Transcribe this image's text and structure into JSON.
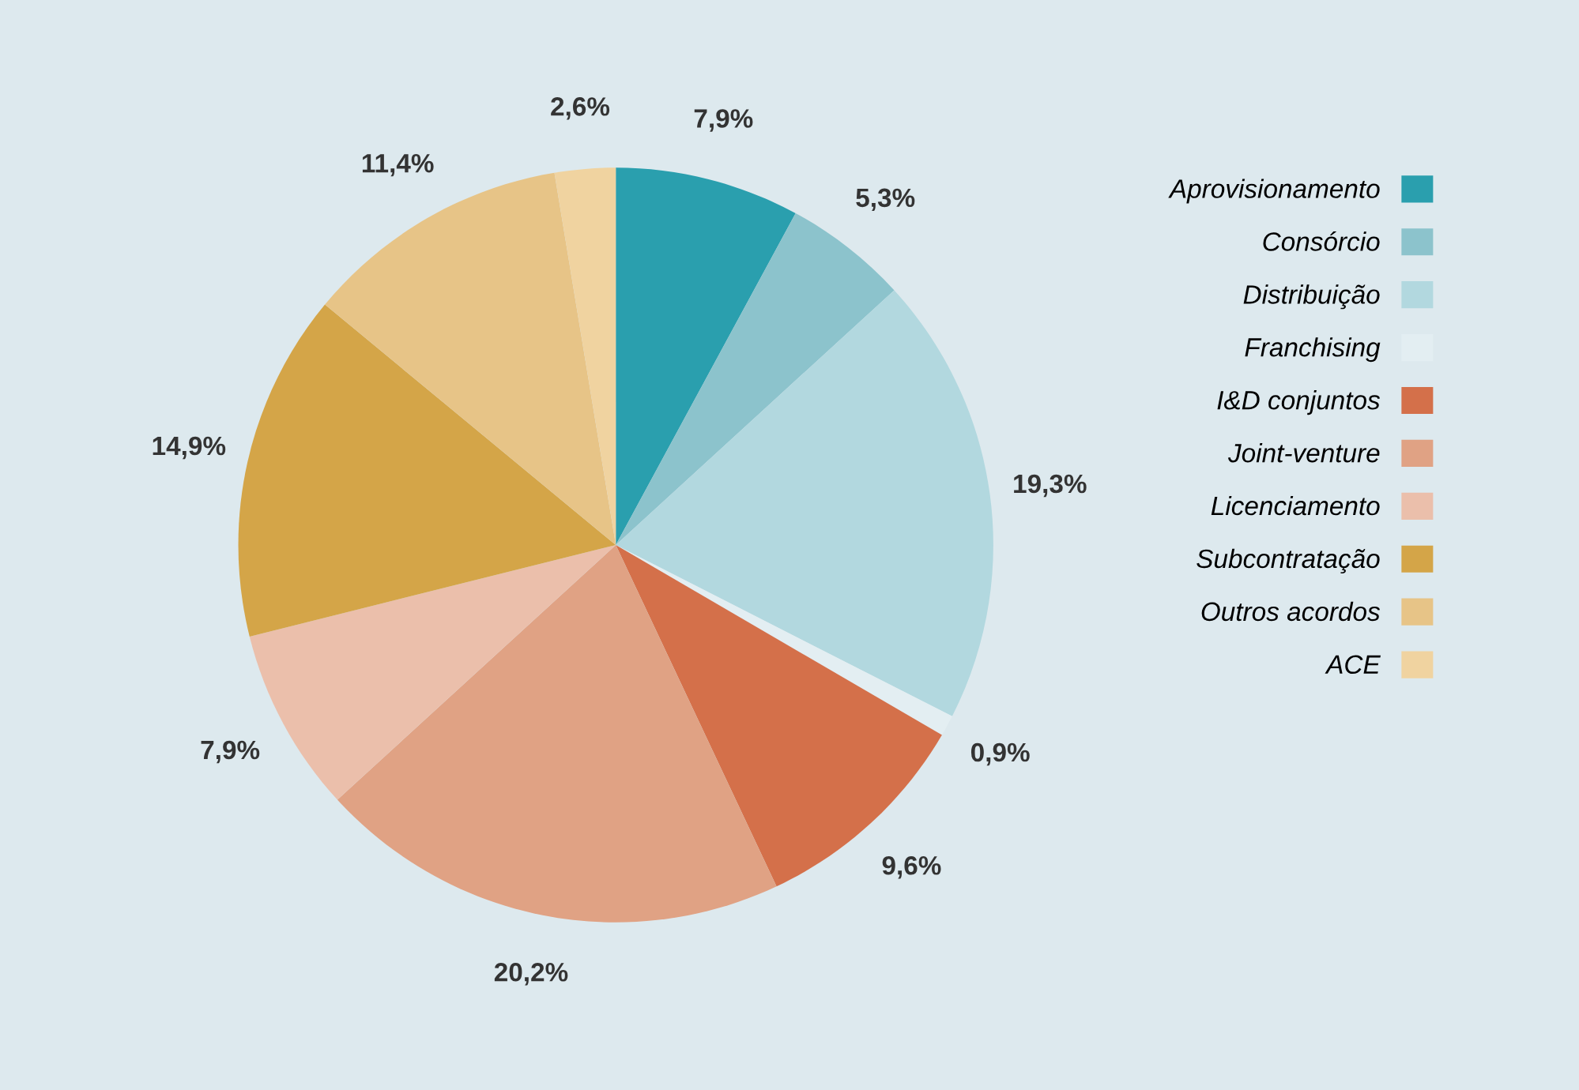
{
  "chart_data": {
    "type": "pie",
    "categories": [
      "Aprovisionamento",
      "Consórcio",
      "Distribuição",
      "Franchising",
      "I&D conjuntos",
      "Joint-venture",
      "Licenciamento",
      "Subcontratação",
      "Outros acordos",
      "ACE"
    ],
    "values": [
      7.9,
      5.3,
      19.3,
      0.9,
      9.6,
      20.2,
      7.9,
      14.9,
      11.4,
      2.6
    ],
    "colors": [
      "#2a9fae",
      "#8cc3cc",
      "#b2d8df",
      "#e3eef2",
      "#d4704a",
      "#e0a284",
      "#ebbfab",
      "#d4a548",
      "#e7c487",
      "#f0d3a0"
    ],
    "value_labels": [
      "7,9%",
      "5,3%",
      "19,3%",
      "0,9%",
      "9,6%",
      "20,2%",
      "7,9%",
      "14,9%",
      "11,4%",
      "2,6%"
    ],
    "legend": "right"
  }
}
